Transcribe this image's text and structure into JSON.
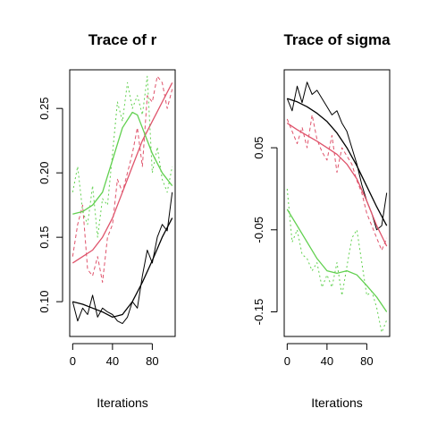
{
  "chart_data": [
    {
      "type": "line",
      "title": "Trace of r",
      "xlabel": "Iterations",
      "ylabel": "",
      "xlim": [
        -3,
        103
      ],
      "ylim": [
        0.073,
        0.28
      ],
      "grid": false,
      "legend": "none",
      "xticks": [
        {
          "value": 0,
          "label": "0"
        },
        {
          "value": 40,
          "label": "40"
        },
        {
          "value": 80,
          "label": "80"
        }
      ],
      "yticks": [
        {
          "value": 0.1,
          "label": "0.10"
        },
        {
          "value": 0.15,
          "label": "0.15"
        },
        {
          "value": 0.2,
          "label": "0.20"
        },
        {
          "value": 0.25,
          "label": "0.25"
        }
      ],
      "series": [
        {
          "color": "#000000",
          "dash": "none",
          "kind": "trace",
          "x": [
            0,
            5,
            10,
            15,
            20,
            25,
            30,
            35,
            40,
            45,
            50,
            55,
            60,
            65,
            70,
            75,
            80,
            85,
            90,
            95,
            100
          ],
          "values": [
            0.1,
            0.085,
            0.095,
            0.09,
            0.105,
            0.088,
            0.095,
            0.092,
            0.09,
            0.085,
            0.083,
            0.088,
            0.1,
            0.095,
            0.12,
            0.14,
            0.13,
            0.15,
            0.16,
            0.155,
            0.185
          ]
        },
        {
          "color": "#000000",
          "dash": "none",
          "kind": "smooth",
          "x": [
            0,
            10,
            20,
            30,
            40,
            50,
            60,
            70,
            80,
            90,
            100
          ],
          "values": [
            0.1,
            0.098,
            0.095,
            0.092,
            0.088,
            0.09,
            0.1,
            0.115,
            0.132,
            0.15,
            0.165
          ]
        },
        {
          "color": "#DF536B",
          "dash": "4,3",
          "kind": "trace",
          "x": [
            0,
            5,
            10,
            15,
            20,
            25,
            30,
            35,
            40,
            45,
            50,
            55,
            60,
            65,
            70,
            75,
            80,
            85,
            90,
            95,
            100
          ],
          "values": [
            0.135,
            0.16,
            0.175,
            0.125,
            0.12,
            0.135,
            0.115,
            0.15,
            0.16,
            0.195,
            0.185,
            0.2,
            0.215,
            0.235,
            0.205,
            0.26,
            0.255,
            0.275,
            0.27,
            0.25,
            0.265
          ]
        },
        {
          "color": "#DF536B",
          "dash": "none",
          "kind": "smooth",
          "x": [
            0,
            10,
            20,
            30,
            40,
            50,
            60,
            70,
            80,
            90,
            100
          ],
          "values": [
            0.13,
            0.135,
            0.14,
            0.15,
            0.165,
            0.185,
            0.205,
            0.225,
            0.24,
            0.255,
            0.27
          ]
        },
        {
          "color": "#61D04F",
          "dash": "2,3",
          "kind": "trace",
          "x": [
            0,
            5,
            10,
            15,
            20,
            25,
            30,
            35,
            40,
            45,
            50,
            55,
            60,
            65,
            70,
            75,
            80,
            85,
            90,
            95,
            100
          ],
          "values": [
            0.185,
            0.205,
            0.17,
            0.16,
            0.19,
            0.15,
            0.18,
            0.175,
            0.215,
            0.255,
            0.24,
            0.27,
            0.25,
            0.26,
            0.245,
            0.275,
            0.2,
            0.22,
            0.195,
            0.185,
            0.205
          ]
        },
        {
          "color": "#61D04F",
          "dash": "none",
          "kind": "smooth",
          "x": [
            0,
            10,
            20,
            30,
            40,
            50,
            60,
            65,
            70,
            80,
            90,
            100
          ],
          "values": [
            0.168,
            0.17,
            0.175,
            0.185,
            0.21,
            0.235,
            0.247,
            0.245,
            0.235,
            0.215,
            0.2,
            0.19
          ]
        }
      ]
    },
    {
      "type": "line",
      "title": "Trace of sigma",
      "xlabel": "Iterations",
      "ylabel": "",
      "xlim": [
        -3,
        103
      ],
      "ylim": [
        -0.18,
        0.145
      ],
      "grid": false,
      "legend": "none",
      "xticks": [
        {
          "value": 0,
          "label": "0"
        },
        {
          "value": 40,
          "label": "40"
        },
        {
          "value": 80,
          "label": "80"
        }
      ],
      "yticks": [
        {
          "value": -0.15,
          "label": "-0.15"
        },
        {
          "value": -0.05,
          "label": "-0.05"
        },
        {
          "value": 0.05,
          "label": "0.05"
        }
      ],
      "series": [
        {
          "color": "#000000",
          "dash": "none",
          "kind": "trace",
          "x": [
            0,
            5,
            10,
            15,
            20,
            25,
            30,
            35,
            40,
            45,
            50,
            55,
            60,
            65,
            70,
            75,
            80,
            85,
            90,
            95,
            100
          ],
          "values": [
            0.11,
            0.095,
            0.125,
            0.105,
            0.13,
            0.115,
            0.12,
            0.11,
            0.1,
            0.09,
            0.095,
            0.08,
            0.07,
            0.05,
            0.03,
            0.005,
            -0.015,
            -0.03,
            -0.05,
            -0.045,
            -0.005
          ]
        },
        {
          "color": "#000000",
          "dash": "none",
          "kind": "smooth",
          "x": [
            0,
            10,
            20,
            30,
            40,
            50,
            60,
            70,
            80,
            90,
            100
          ],
          "values": [
            0.11,
            0.106,
            0.1,
            0.092,
            0.082,
            0.068,
            0.05,
            0.028,
            0.003,
            -0.022,
            -0.045
          ]
        },
        {
          "color": "#DF536B",
          "dash": "4,3",
          "kind": "trace",
          "x": [
            0,
            5,
            10,
            15,
            20,
            25,
            30,
            35,
            40,
            45,
            50,
            55,
            60,
            65,
            70,
            75,
            80,
            85,
            90,
            95,
            100
          ],
          "values": [
            0.085,
            0.07,
            0.055,
            0.075,
            0.05,
            0.09,
            0.06,
            0.045,
            0.035,
            0.065,
            0.02,
            0.05,
            0.04,
            0.03,
            0.01,
            -0.005,
            -0.03,
            -0.045,
            -0.06,
            -0.075,
            -0.06
          ]
        },
        {
          "color": "#DF536B",
          "dash": "none",
          "kind": "smooth",
          "x": [
            0,
            10,
            20,
            30,
            40,
            50,
            60,
            70,
            80,
            90,
            100
          ],
          "values": [
            0.08,
            0.072,
            0.065,
            0.058,
            0.05,
            0.042,
            0.03,
            0.012,
            -0.015,
            -0.045,
            -0.07
          ]
        },
        {
          "color": "#61D04F",
          "dash": "2,3",
          "kind": "trace",
          "x": [
            0,
            5,
            10,
            15,
            20,
            25,
            30,
            35,
            40,
            45,
            50,
            55,
            60,
            65,
            70,
            75,
            80,
            85,
            90,
            95,
            100
          ],
          "values": [
            0.0,
            -0.065,
            -0.05,
            -0.08,
            -0.085,
            -0.1,
            -0.09,
            -0.12,
            -0.105,
            -0.12,
            -0.09,
            -0.13,
            -0.095,
            -0.06,
            -0.05,
            -0.09,
            -0.13,
            -0.125,
            -0.145,
            -0.175,
            -0.16
          ]
        },
        {
          "color": "#61D04F",
          "dash": "none",
          "kind": "smooth",
          "x": [
            0,
            10,
            20,
            30,
            40,
            50,
            60,
            70,
            80,
            90,
            100
          ],
          "values": [
            -0.025,
            -0.045,
            -0.065,
            -0.085,
            -0.1,
            -0.103,
            -0.1,
            -0.105,
            -0.118,
            -0.132,
            -0.15
          ]
        }
      ]
    }
  ]
}
